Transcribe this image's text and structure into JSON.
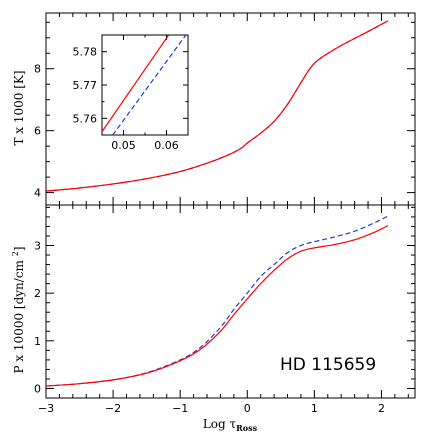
{
  "chart_data": [
    {
      "type": "line",
      "ylabel": "T x 1000 [K]",
      "xlim": [
        -3,
        2.5
      ],
      "ylim": [
        3.6,
        9.8
      ],
      "xticks": [
        -3,
        -2,
        -1,
        0,
        1,
        2
      ],
      "yticks": [
        4,
        6,
        8
      ],
      "ytick_labels": [
        "4",
        "6",
        "8"
      ],
      "series": [
        {
          "color": "#ff0000",
          "dash": "solid",
          "x": [
            -3.0,
            -2.5,
            -2.0,
            -1.5,
            -1.0,
            -0.6,
            -0.3,
            -0.1,
            0.0,
            0.2,
            0.4,
            0.6,
            0.8,
            0.95,
            1.1,
            1.4,
            1.8,
            2.1
          ],
          "y": [
            4.05,
            4.15,
            4.28,
            4.45,
            4.68,
            4.95,
            5.2,
            5.42,
            5.6,
            5.92,
            6.3,
            6.85,
            7.55,
            8.05,
            8.35,
            8.75,
            9.2,
            9.55
          ]
        },
        {
          "color": "#1f3bd6",
          "dash": "dashed",
          "x": [
            -3.0,
            -2.5,
            -2.0,
            -1.5,
            -1.0,
            -0.6,
            -0.3,
            -0.1,
            0.0,
            0.2,
            0.4,
            0.6,
            0.8,
            0.95,
            1.1,
            1.4,
            1.8,
            2.1
          ],
          "y": [
            4.05,
            4.15,
            4.28,
            4.45,
            4.68,
            4.95,
            5.2,
            5.42,
            5.6,
            5.92,
            6.3,
            6.85,
            7.55,
            8.05,
            8.35,
            8.75,
            9.2,
            9.55
          ]
        }
      ]
    },
    {
      "type": "line",
      "title": "",
      "xlim": [
        0.045,
        0.065
      ],
      "ylim": [
        5.755,
        5.785
      ],
      "xticks": [
        0.05,
        0.06
      ],
      "xtick_labels": [
        "0.05",
        "0.06"
      ],
      "yticks": [
        5.76,
        5.77,
        5.78
      ],
      "ytick_labels": [
        "5.76",
        "5.77",
        "5.78"
      ],
      "series": [
        {
          "color": "#ff0000",
          "dash": "solid",
          "x": [
            0.045,
            0.0605
          ],
          "y": [
            5.756,
            5.785
          ]
        },
        {
          "color": "#1f3bd6",
          "dash": "dashed",
          "x": [
            0.0475,
            0.0645
          ],
          "y": [
            5.755,
            5.785
          ]
        }
      ]
    },
    {
      "type": "line",
      "xlabel": "Log τRoss",
      "ylabel": "P x 10000 [dyn/cm2]",
      "xlim": [
        -3,
        2.5
      ],
      "ylim": [
        -0.2,
        3.85
      ],
      "xticks": [
        -3,
        -2,
        -1,
        0,
        1,
        2
      ],
      "xtick_labels": [
        "−3",
        "−2",
        "−1",
        "0",
        "1",
        "2"
      ],
      "yticks": [
        0,
        1,
        2,
        3
      ],
      "ytick_labels": [
        "0",
        "1",
        "2",
        "3"
      ],
      "annotation": "HD 115659",
      "series": [
        {
          "color": "#ff0000",
          "dash": "solid",
          "x": [
            -3.0,
            -2.5,
            -2.0,
            -1.5,
            -1.0,
            -0.7,
            -0.4,
            -0.2,
            0.0,
            0.2,
            0.4,
            0.6,
            0.8,
            1.0,
            1.3,
            1.6,
            1.9,
            2.1
          ],
          "y": [
            0.05,
            0.1,
            0.18,
            0.32,
            0.58,
            0.82,
            1.2,
            1.55,
            1.88,
            2.2,
            2.48,
            2.72,
            2.88,
            2.95,
            3.02,
            3.12,
            3.28,
            3.42
          ]
        },
        {
          "color": "#1f3bd6",
          "dash": "dashed",
          "x": [
            -3.0,
            -2.5,
            -2.0,
            -1.5,
            -1.0,
            -0.7,
            -0.4,
            -0.2,
            0.0,
            0.2,
            0.4,
            0.6,
            0.8,
            1.0,
            1.3,
            1.6,
            1.9,
            2.1
          ],
          "y": [
            0.05,
            0.1,
            0.18,
            0.33,
            0.6,
            0.86,
            1.28,
            1.66,
            2.0,
            2.35,
            2.6,
            2.85,
            3.0,
            3.08,
            3.18,
            3.3,
            3.48,
            3.62
          ]
        }
      ]
    }
  ]
}
